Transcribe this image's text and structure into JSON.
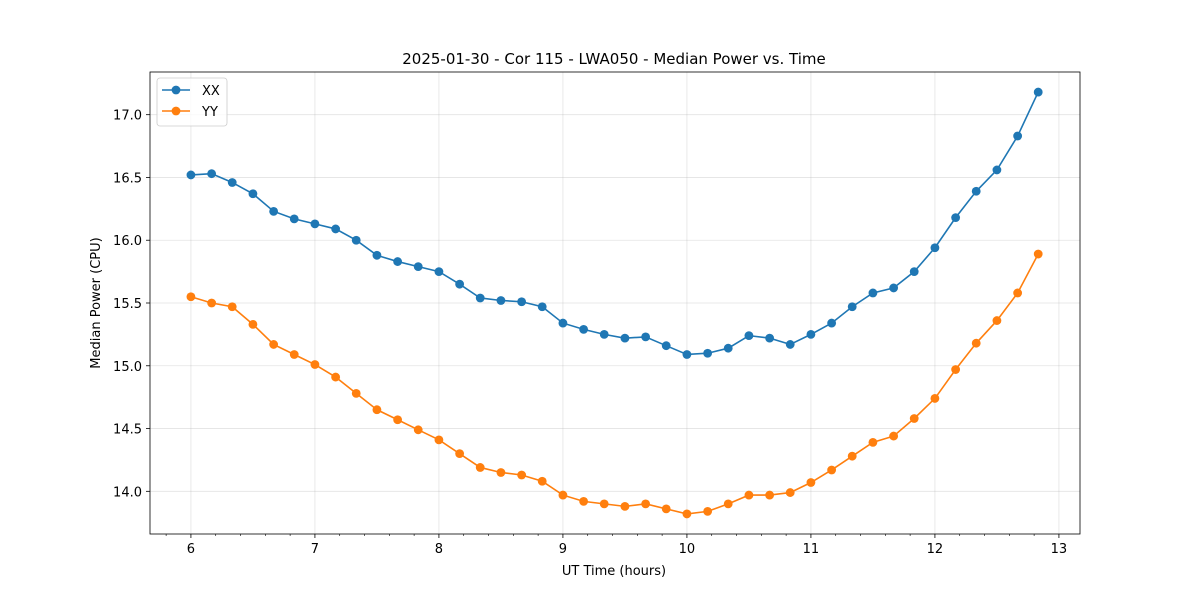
{
  "chart_data": {
    "type": "line",
    "title": "2025-01-30 - Cor 115 - LWA050 - Median Power vs. Time",
    "xlabel": "UT Time (hours)",
    "ylabel": "Median Power (CPU)",
    "xlim": [
      5.67,
      13.17
    ],
    "ylim": [
      13.66,
      17.34
    ],
    "grid": true,
    "legend_position": "top-left",
    "xticks": [
      6,
      7,
      8,
      9,
      10,
      11,
      12,
      13
    ],
    "xtick_labels": [
      "6",
      "7",
      "8",
      "9",
      "10",
      "11",
      "12",
      "13"
    ],
    "yticks": [
      14.0,
      14.5,
      15.0,
      15.5,
      16.0,
      16.5,
      17.0
    ],
    "ytick_labels": [
      "14.0",
      "14.5",
      "15.0",
      "15.5",
      "16.0",
      "16.5",
      "17.0"
    ],
    "x": [
      6.0,
      6.167,
      6.333,
      6.5,
      6.667,
      6.833,
      7.0,
      7.167,
      7.333,
      7.5,
      7.667,
      7.833,
      8.0,
      8.167,
      8.333,
      8.5,
      8.667,
      8.833,
      9.0,
      9.167,
      9.333,
      9.5,
      9.667,
      9.833,
      10.0,
      10.167,
      10.333,
      10.5,
      10.667,
      10.833,
      11.0,
      11.167,
      11.333,
      11.5,
      11.667,
      11.833,
      12.0,
      12.167,
      12.333,
      12.5,
      12.667,
      12.833
    ],
    "series": [
      {
        "name": "XX",
        "color": "#1f77b4",
        "values": [
          16.52,
          16.53,
          16.46,
          16.37,
          16.23,
          16.17,
          16.13,
          16.09,
          16.0,
          15.88,
          15.83,
          15.79,
          15.75,
          15.65,
          15.54,
          15.52,
          15.51,
          15.47,
          15.34,
          15.29,
          15.25,
          15.22,
          15.23,
          15.16,
          15.09,
          15.1,
          15.14,
          15.24,
          15.22,
          15.17,
          15.25,
          15.34,
          15.47,
          15.58,
          15.62,
          15.75,
          15.94,
          16.18,
          16.39,
          16.56,
          16.83,
          17.18
        ]
      },
      {
        "name": "YY",
        "color": "#ff7f0e",
        "values": [
          15.55,
          15.5,
          15.47,
          15.33,
          15.17,
          15.09,
          15.01,
          14.91,
          14.78,
          14.65,
          14.57,
          14.49,
          14.41,
          14.3,
          14.19,
          14.15,
          14.13,
          14.08,
          13.97,
          13.92,
          13.9,
          13.88,
          13.9,
          13.86,
          13.82,
          13.84,
          13.9,
          13.97,
          13.97,
          13.99,
          14.07,
          14.17,
          14.28,
          14.39,
          14.44,
          14.58,
          14.74,
          14.97,
          15.18,
          15.36,
          15.58,
          15.89
        ]
      }
    ]
  }
}
